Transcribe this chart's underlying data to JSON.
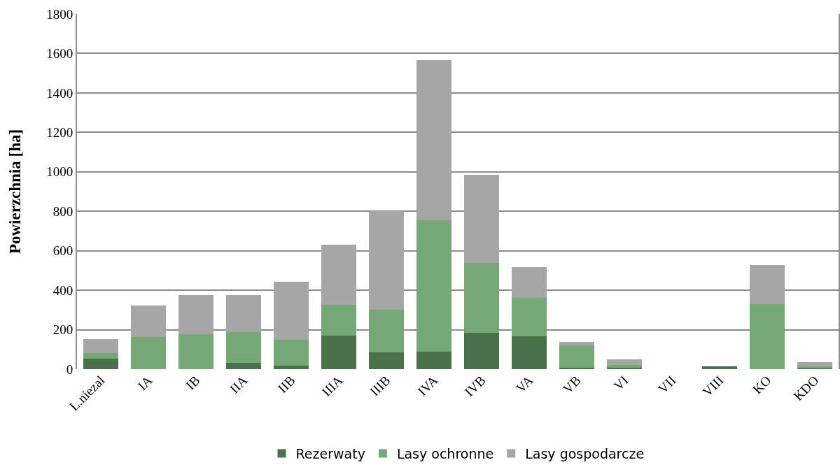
{
  "chart_data": {
    "type": "bar",
    "stacked": true,
    "ylabel": "Powierzchnia [ha]",
    "categories": [
      "L.niezal",
      "IA",
      "IB",
      "IIA",
      "IIB",
      "IIIA",
      "IIIB",
      "IVA",
      "IVB",
      "VA",
      "VB",
      "VI",
      "VII",
      "VIII",
      "KO",
      "KDO"
    ],
    "series": [
      {
        "name": "Rezerwaty",
        "color": "#4a724a",
        "values": [
          53,
          0,
          0,
          32,
          18,
          170,
          84,
          89,
          185,
          168,
          8,
          8,
          0,
          15,
          0,
          2
        ]
      },
      {
        "name": "Lasy ochronne",
        "color": "#76a875",
        "values": [
          28,
          164,
          176,
          157,
          132,
          157,
          216,
          666,
          352,
          194,
          111,
          14,
          0,
          0,
          331,
          11
        ]
      },
      {
        "name": "Lasy gospodarcze",
        "color": "#a6a6a6",
        "values": [
          71,
          157,
          200,
          186,
          292,
          302,
          500,
          810,
          447,
          155,
          20,
          28,
          0,
          0,
          196,
          22
        ]
      }
    ],
    "ylim": [
      0,
      1800
    ],
    "yticks": [
      0,
      200,
      400,
      600,
      800,
      1000,
      1200,
      1400,
      1600,
      1800
    ],
    "grid": "y",
    "legend": "bottom"
  }
}
